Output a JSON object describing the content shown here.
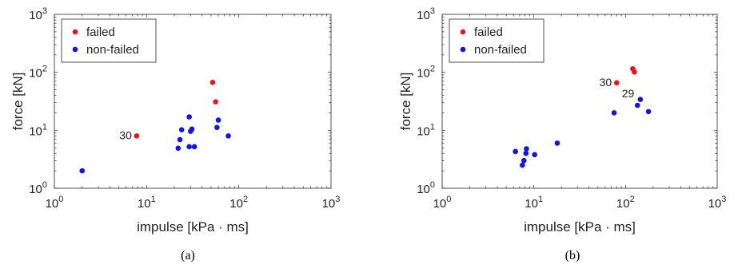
{
  "chart_data": [
    {
      "type": "scatter",
      "caption": "(a)",
      "xlabel": "impulse [kPa · ms]",
      "ylabel": "force [kN]",
      "xscale": "log",
      "yscale": "log",
      "xlim": [
        1,
        1000
      ],
      "ylim": [
        1,
        1000
      ],
      "grid": false,
      "legend_position": "top-left",
      "series": [
        {
          "name": "failed",
          "color": "#e8141e",
          "points": [
            {
              "x": 7.8,
              "y": 8.0
            },
            {
              "x": 52,
              "y": 67
            },
            {
              "x": 56,
              "y": 31
            }
          ]
        },
        {
          "name": "non-failed",
          "color": "#1414e8",
          "points": [
            {
              "x": 2.0,
              "y": 2.0
            },
            {
              "x": 22,
              "y": 4.9
            },
            {
              "x": 23,
              "y": 6.9
            },
            {
              "x": 24,
              "y": 10.2
            },
            {
              "x": 29,
              "y": 5.2
            },
            {
              "x": 29,
              "y": 17
            },
            {
              "x": 30,
              "y": 9.6
            },
            {
              "x": 31,
              "y": 10.5
            },
            {
              "x": 33,
              "y": 5.2
            },
            {
              "x": 58,
              "y": 11.2
            },
            {
              "x": 60,
              "y": 15
            },
            {
              "x": 77,
              "y": 8.0
            }
          ]
        }
      ],
      "annotations": [
        {
          "text": "30",
          "x": 7.8,
          "y": 8.0
        }
      ]
    },
    {
      "type": "scatter",
      "caption": "(b)",
      "xlabel": "impulse [kPa · ms]",
      "ylabel": "force [kN]",
      "xscale": "log",
      "yscale": "log",
      "xlim": [
        1,
        1000
      ],
      "ylim": [
        1,
        1000
      ],
      "grid": false,
      "legend_position": "top-left",
      "series": [
        {
          "name": "failed",
          "color": "#e8141e",
          "points": [
            {
              "x": 80,
              "y": 66
            },
            {
              "x": 120,
              "y": 115
            },
            {
              "x": 125,
              "y": 101
            }
          ]
        },
        {
          "name": "non-failed",
          "color": "#1414e8",
          "points": [
            {
              "x": 6.3,
              "y": 4.3
            },
            {
              "x": 7.5,
              "y": 2.5
            },
            {
              "x": 7.8,
              "y": 3.0
            },
            {
              "x": 8.2,
              "y": 4.0
            },
            {
              "x": 8.3,
              "y": 4.8
            },
            {
              "x": 10.2,
              "y": 3.8
            },
            {
              "x": 18,
              "y": 6.0
            },
            {
              "x": 75,
              "y": 20
            },
            {
              "x": 135,
              "y": 27
            },
            {
              "x": 145,
              "y": 34
            },
            {
              "x": 178,
              "y": 21
            }
          ]
        }
      ],
      "annotations": [
        {
          "text": "30",
          "x": 80,
          "y": 66
        },
        {
          "text": "29",
          "x": 135,
          "y": 27
        }
      ]
    }
  ],
  "tick_labels": [
    "10",
    "10",
    "10",
    "10"
  ],
  "tick_exponents": [
    "0",
    "1",
    "2",
    "3"
  ]
}
